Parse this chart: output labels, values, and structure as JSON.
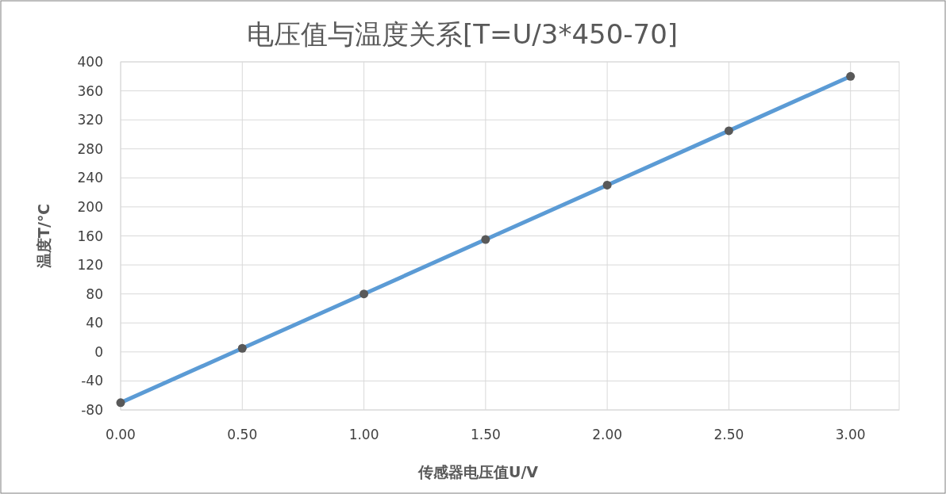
{
  "chart_data": {
    "type": "line",
    "title": "电压值与温度关系[T=U/3*450-70]",
    "xlabel": "传感器电压值U/V",
    "ylabel": "温度T/℃",
    "x": [
      0,
      0.5,
      1,
      1.5,
      2,
      2.5,
      3
    ],
    "series": [
      {
        "color": "#5b9bd5",
        "values": [
          -70,
          5,
          80,
          155,
          230,
          305,
          380
        ]
      }
    ],
    "marker": "circle",
    "grid": true,
    "xlim": [
      0,
      3.2
    ],
    "xticks": [
      {
        "value": 0,
        "label": "0.00"
      },
      {
        "value": 0.5,
        "label": "0.50"
      },
      {
        "value": 1,
        "label": "1.00"
      },
      {
        "value": 1.5,
        "label": "1.50"
      },
      {
        "value": 2,
        "label": "2.00"
      },
      {
        "value": 2.5,
        "label": "2.50"
      },
      {
        "value": 3,
        "label": "3.00"
      }
    ],
    "ylim": [
      -80,
      400
    ],
    "yticks": [
      -80,
      -40,
      0,
      40,
      80,
      120,
      160,
      200,
      240,
      280,
      320,
      360,
      400
    ]
  }
}
